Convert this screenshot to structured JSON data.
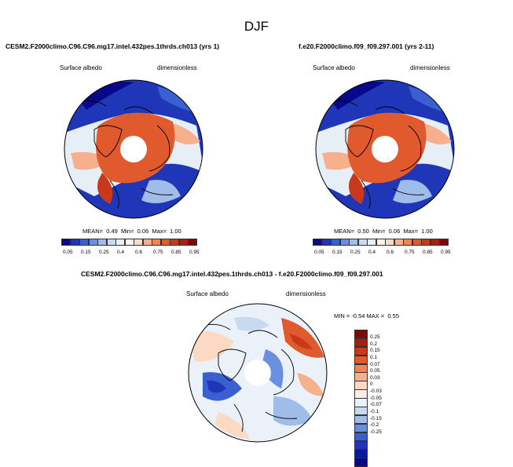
{
  "season": "DJF",
  "panels": [
    {
      "title": "CESM2.F2000climo.C96.C96.mg17.intel.432pes.1thrds.ch013 (yrs 1)",
      "variable": "Surface albedo",
      "units": "dimensionless",
      "stats": {
        "mean_label": "MEAN=",
        "mean": "0.49",
        "min_label": "Min=",
        "min": "0.06",
        "max_label": "Max=",
        "max": "1.00"
      }
    },
    {
      "title": "f.e20.F2000climo.f09_f09.297.001 (yrs 2-11)",
      "variable": "Surface albedo",
      "units": "dimensionless",
      "stats": {
        "mean_label": "MEAN=",
        "mean": "0.50",
        "min_label": "Min=",
        "min": "0.06",
        "max_label": "Max=",
        "max": "1.00"
      }
    }
  ],
  "abs_colorbar": {
    "levels": [
      "0.05",
      "0.15",
      "0.25",
      "0.4",
      "0.6",
      "0.75",
      "0.85",
      "0.95"
    ],
    "colors": [
      "#08088a",
      "#1f36b8",
      "#3a5fd0",
      "#6a8ee0",
      "#9fbde8",
      "#c7daf0",
      "#e6eef6",
      "#f7f2ea",
      "#fbd9c2",
      "#f6b08b",
      "#ef8458",
      "#e05a2e",
      "#c8391c",
      "#a81f12",
      "#7a0c08"
    ]
  },
  "diff_panel": {
    "title": "CESM2.F2000climo.C96.C96.mg17.intel.432pes.1thrds.ch013 - f.e20.F2000climo.f09_f09.297.001",
    "variable": "Surface albedo",
    "units": "dimensionless",
    "stats": {
      "min_label": "MIN =",
      "min": "-0.54",
      "max_label": "MAX =",
      "max": "0.55"
    }
  },
  "diff_colorbar": {
    "levels": [
      "0.25",
      "0.2",
      "0.15",
      "0.1",
      "0.07",
      "0.05",
      "0.03",
      "0",
      "-0.03",
      "-0.05",
      "-0.07",
      "-0.1",
      "-0.15",
      "-0.2",
      "-0.25"
    ],
    "colors": [
      "#7a0c08",
      "#a81f12",
      "#c8391c",
      "#e05a2e",
      "#ef8458",
      "#f6b08b",
      "#fbd9c2",
      "#fbeee2",
      "#eaf1f8",
      "#c7daf0",
      "#9fbde8",
      "#6a8ee0",
      "#3a5fd0",
      "#1f36b8",
      "#0a1a9a",
      "#08088a"
    ]
  }
}
